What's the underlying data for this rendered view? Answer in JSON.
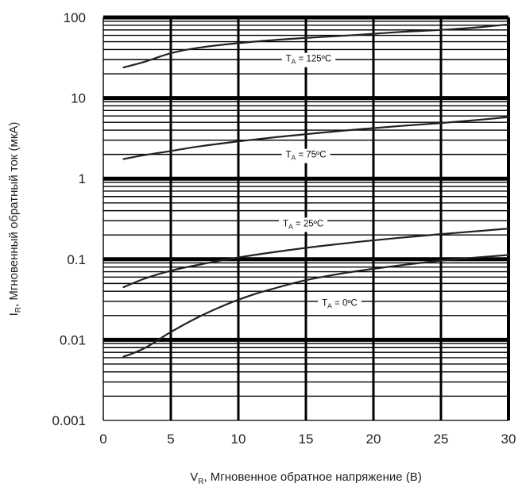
{
  "chart_data": {
    "type": "line",
    "title": "",
    "xlabel_main": "V",
    "xlabel_sub": "R",
    "xlabel_rest": ", Мгновенное обратное напряжение (В)",
    "ylabel_main": "I",
    "ylabel_sub": "R",
    "ylabel_rest": ", Мгновенный обратный ток (мкА)",
    "x_scale": "linear",
    "y_scale": "log",
    "xlim": [
      0,
      30
    ],
    "ylim": [
      0.001,
      100
    ],
    "x_ticks": [
      "0",
      "5",
      "10",
      "15",
      "20",
      "25",
      "30"
    ],
    "y_ticks": [
      "0.001",
      "0.01",
      "0.1",
      "1",
      "10",
      "100"
    ],
    "grid": true,
    "series": [
      {
        "label_main": "T",
        "label_sub": "A",
        "label_rest": " = 125ºC",
        "label_at": [
          15.2,
          31
        ],
        "x": [
          1.5,
          3,
          5,
          7,
          10,
          13,
          16,
          19,
          22,
          25,
          28,
          30
        ],
        "y": [
          24,
          28,
          36,
          42,
          48,
          53,
          57,
          61,
          66,
          70,
          76,
          82
        ]
      },
      {
        "label_main": "T",
        "label_sub": "A",
        "label_rest": " = 75ºC",
        "label_at": [
          15,
          2.0
        ],
        "x": [
          1.5,
          3,
          5,
          7,
          10,
          13,
          16,
          19,
          22,
          25,
          28,
          30
        ],
        "y": [
          1.75,
          1.95,
          2.2,
          2.5,
          2.9,
          3.3,
          3.7,
          4.1,
          4.5,
          4.9,
          5.4,
          5.8
        ]
      },
      {
        "label_main": "T",
        "label_sub": "A",
        "label_rest": " = 25ºC",
        "label_at": [
          14.8,
          0.28
        ],
        "x": [
          1.5,
          3,
          5,
          7,
          10,
          13,
          16,
          19,
          22,
          25,
          28,
          30
        ],
        "y": [
          0.045,
          0.057,
          0.072,
          0.085,
          0.105,
          0.125,
          0.145,
          0.165,
          0.185,
          0.205,
          0.225,
          0.24
        ]
      },
      {
        "label_main": "T",
        "label_sub": "A",
        "label_rest": " = 0ºC",
        "label_at": [
          17.5,
          0.029
        ],
        "x": [
          1.5,
          2,
          3,
          4,
          5,
          7,
          9,
          11,
          13,
          15,
          18,
          21,
          24,
          27,
          30
        ],
        "y": [
          0.0062,
          0.0066,
          0.0078,
          0.0098,
          0.0125,
          0.019,
          0.027,
          0.036,
          0.045,
          0.055,
          0.068,
          0.08,
          0.092,
          0.103,
          0.113
        ]
      }
    ],
    "colors": {
      "grid": "#000000",
      "curve": "#222222",
      "label_background": "#ffffff"
    }
  }
}
